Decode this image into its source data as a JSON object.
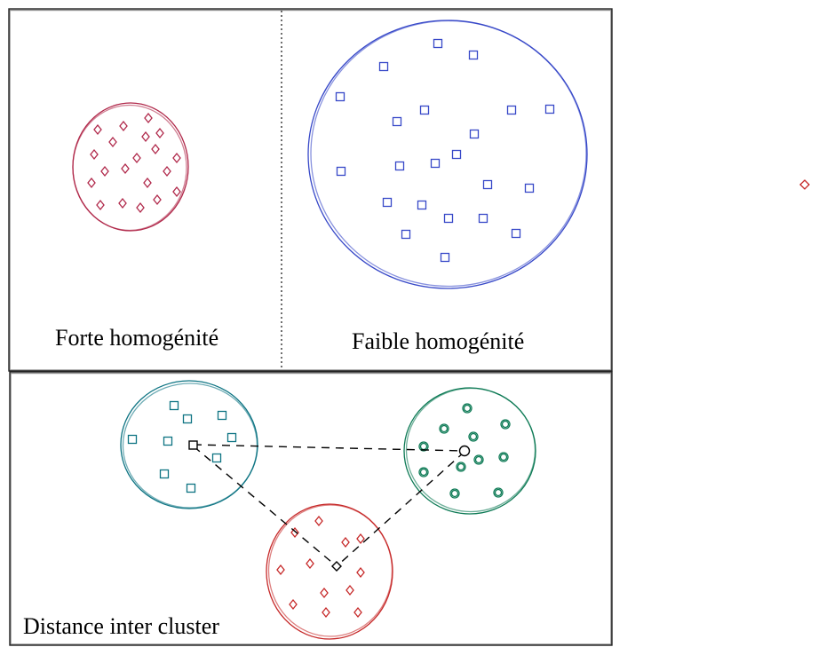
{
  "panels": {
    "top_left_label": "Forte homogénité",
    "top_right_label": "Faible homogénité",
    "bottom_label": "Distance inter cluster"
  },
  "colors": {
    "crimson": "#b0284a",
    "blue": "#3748c8",
    "teal": "#0e7483",
    "green": "#0d7a55",
    "red": "#c62828",
    "frame": "#222222"
  },
  "icons": {
    "diamond": "diamond-marker-icon",
    "square": "square-marker-icon",
    "circle": "circle-marker-icon"
  }
}
